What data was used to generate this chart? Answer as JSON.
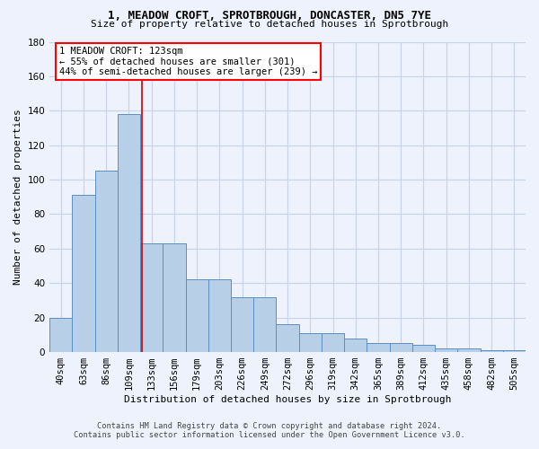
{
  "title_line1": "1, MEADOW CROFT, SPROTBROUGH, DONCASTER, DN5 7YE",
  "title_line2": "Size of property relative to detached houses in Sprotbrough",
  "xlabel": "Distribution of detached houses by size in Sprotbrough",
  "ylabel": "Number of detached properties",
  "bar_values": [
    20,
    91,
    105,
    138,
    63,
    63,
    42,
    42,
    32,
    32,
    16,
    11,
    11,
    8,
    5,
    5,
    4,
    2,
    2,
    1,
    1
  ],
  "bin_labels": [
    "40sqm",
    "63sqm",
    "86sqm",
    "109sqm",
    "133sqm",
    "156sqm",
    "179sqm",
    "203sqm",
    "226sqm",
    "249sqm",
    "272sqm",
    "296sqm",
    "319sqm",
    "342sqm",
    "365sqm",
    "389sqm",
    "412sqm",
    "435sqm",
    "458sqm",
    "482sqm",
    "505sqm"
  ],
  "bar_color": "#b8cfe8",
  "bar_edge_color": "#5b8ec4",
  "background_color": "#edf2fc",
  "grid_color": "#c8d3e8",
  "annotation_text": "1 MEADOW CROFT: 123sqm\n← 55% of detached houses are smaller (301)\n44% of semi-detached houses are larger (239) →",
  "property_sqm": 123,
  "bin_starts": [
    40,
    63,
    86,
    109,
    133,
    156,
    179,
    203,
    226,
    249,
    272,
    296,
    319,
    342,
    365,
    389,
    412,
    435,
    458,
    482,
    505
  ],
  "vline_color": "#cc0000",
  "ylim": [
    0,
    180
  ],
  "yticks": [
    0,
    20,
    40,
    60,
    80,
    100,
    120,
    140,
    160,
    180
  ],
  "footer_line1": "Contains HM Land Registry data © Crown copyright and database right 2024.",
  "footer_line2": "Contains public sector information licensed under the Open Government Licence v3.0."
}
